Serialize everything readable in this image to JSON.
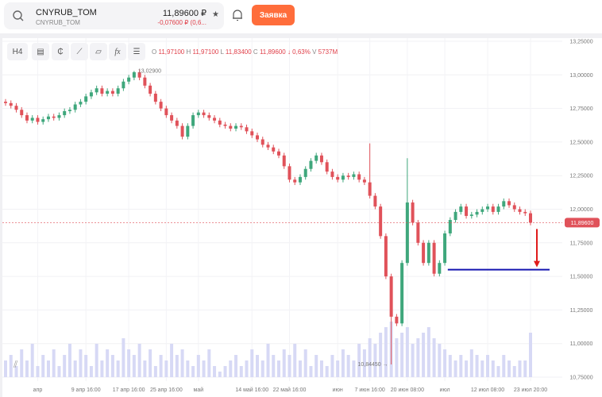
{
  "header": {
    "symbol": "CNYRUB_TOM",
    "symbol_sub": "CNYRUB_TOM",
    "price": "11,89600 ₽",
    "change": "-0,07600 ₽ (0,6...",
    "order_button": "Заявка",
    "icons": [
      "search-icon",
      "star-icon",
      "bell-icon"
    ]
  },
  "toolbar": {
    "timeframe": "H4",
    "icons": [
      "indicator-template-icon",
      "candle-type-icon",
      "drawing-tools-icon",
      "shapes-icon",
      "fx-indicators-icon",
      "settings-sliders-icon"
    ]
  },
  "ohlc": {
    "o_label": "O",
    "o": "11,97100",
    "h_label": "H",
    "h": "11,97100",
    "l_label": "L",
    "l": "11,83400",
    "c_label": "C",
    "c": "11,89600",
    "change": "↓ 0,63%",
    "v_label": "V",
    "v": "5737M"
  },
  "colors": {
    "up": "#3fa77c",
    "down": "#e0525a",
    "accent": "#ff6d3b",
    "level_line": "#1515b0",
    "arrow": "#e01b1b",
    "volume": "#d7d9f5"
  },
  "chart_data": {
    "type": "candlestick",
    "ylim": [
      10.75,
      13.25
    ],
    "y_ticks": [
      "13,25000",
      "13,00000",
      "12,75000",
      "12,50000",
      "12,25000",
      "12,00000",
      "11,75000",
      "11,50000",
      "11,25000",
      "11,00000",
      "10,75000"
    ],
    "y_tick_values": [
      13.25,
      13.0,
      12.75,
      12.5,
      12.25,
      12.0,
      11.75,
      11.5,
      11.25,
      11.0,
      10.75
    ],
    "x_ticks": [
      "апр",
      "9 апр 16:00",
      "17 апр 16:00",
      "25 апр 16:00",
      "май",
      "14 май 16:00",
      "22 май 16:00",
      "июн",
      "7 июн 16:00",
      "20 июн 08:00",
      "июл",
      "12 июл 08:00",
      "23 июл 20:00"
    ],
    "x_tick_candle": [
      6,
      15,
      23,
      30,
      36,
      46,
      53,
      62,
      68,
      75,
      82,
      90,
      98
    ],
    "closes": [
      12.79,
      12.77,
      12.74,
      12.7,
      12.66,
      12.68,
      12.65,
      12.67,
      12.69,
      12.68,
      12.7,
      12.73,
      12.74,
      12.78,
      12.8,
      12.84,
      12.87,
      12.9,
      12.86,
      12.88,
      12.86,
      12.9,
      12.95,
      12.98,
      13.02,
      12.98,
      12.92,
      12.86,
      12.8,
      12.75,
      12.7,
      12.66,
      12.62,
      12.54,
      12.62,
      12.7,
      12.72,
      12.7,
      12.68,
      12.66,
      12.63,
      12.62,
      12.6,
      12.62,
      12.61,
      12.58,
      12.55,
      12.52,
      12.48,
      12.46,
      12.43,
      12.4,
      12.32,
      12.22,
      12.2,
      12.24,
      12.3,
      12.36,
      12.4,
      12.35,
      12.28,
      12.24,
      12.22,
      12.25,
      12.24,
      12.26,
      12.22,
      12.2,
      12.1,
      12.02,
      11.8,
      11.5,
      11.2,
      11.15,
      11.6,
      12.05,
      11.9,
      11.75,
      11.6,
      11.75,
      11.52,
      11.6,
      11.82,
      11.92,
      11.98,
      12.02,
      11.95,
      11.96,
      11.98,
      12.0,
      12.02,
      11.98,
      12.02,
      12.06,
      12.03,
      12.0,
      11.98,
      11.97,
      11.9
    ],
    "extremes": [
      {
        "i": 24,
        "high": 13.029
      },
      {
        "i": 68,
        "high": 12.49
      },
      {
        "i": 72,
        "low": 10.8445
      },
      {
        "i": 75,
        "high": 12.38
      }
    ],
    "volumes": [
      3,
      4,
      2,
      5,
      3,
      6,
      2,
      4,
      3,
      5,
      2,
      4,
      6,
      3,
      5,
      4,
      2,
      6,
      3,
      5,
      4,
      3,
      7,
      5,
      4,
      6,
      3,
      5,
      2,
      4,
      3,
      6,
      4,
      5,
      3,
      2,
      4,
      3,
      5,
      2,
      1,
      2,
      3,
      4,
      2,
      3,
      5,
      4,
      3,
      6,
      4,
      3,
      5,
      4,
      6,
      3,
      5,
      2,
      4,
      3,
      2,
      4,
      3,
      5,
      4,
      3,
      6,
      5,
      7,
      6,
      8,
      9,
      10,
      7,
      8,
      9,
      6,
      7,
      8,
      9,
      7,
      6,
      5,
      4,
      3,
      4,
      3,
      5,
      4,
      3,
      4,
      3,
      2,
      4,
      3,
      2,
      3,
      3,
      8
    ],
    "annotations": {
      "max_label": "13,02900",
      "min_label": "10,84450 →",
      "last_price_label": "11,89600",
      "support_level": 11.55
    }
  }
}
